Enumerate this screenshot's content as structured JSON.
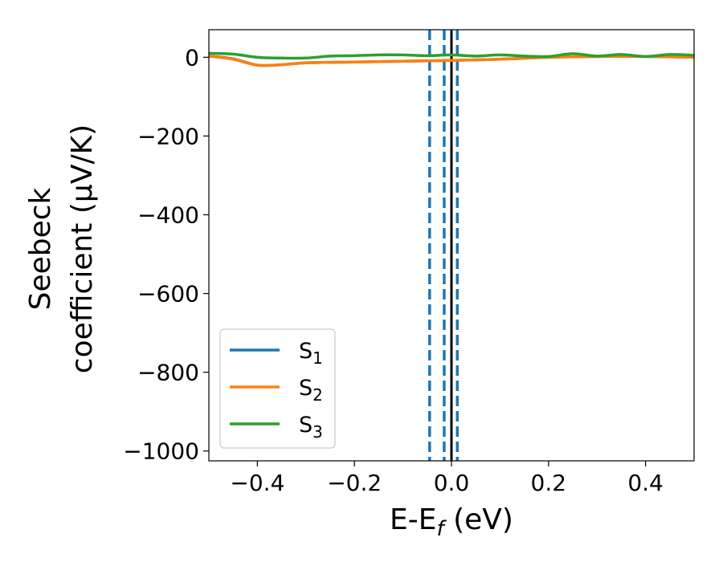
{
  "chart_data": {
    "type": "line",
    "xlabel_main": "E-E",
    "xlabel_sub": "f",
    "xlabel_unit": " (eV)",
    "ylabel_line1": "Seebeck",
    "ylabel_line2": "coefficient  (μV/K)",
    "xlim": [
      -0.5,
      0.5
    ],
    "ylim": [
      -1025,
      70
    ],
    "x_ticks": [
      -0.4,
      -0.2,
      0.0,
      0.2,
      0.4
    ],
    "x_tick_labels": [
      "−0.4",
      "−0.2",
      "0.0",
      "0.2",
      "0.4"
    ],
    "y_ticks": [
      0,
      -200,
      -400,
      -600,
      -800,
      -1000
    ],
    "y_tick_labels": [
      "0",
      "−200",
      "−400",
      "−600",
      "−800",
      "−1000"
    ],
    "grid": false,
    "legend_position": "lower-left",
    "series": [
      {
        "name": "S",
        "sub": "1",
        "color": "#1f77b4",
        "x": [
          -0.5,
          -0.45,
          -0.4,
          -0.35,
          -0.3,
          -0.2,
          -0.1,
          0.0,
          0.1,
          0.2,
          0.3,
          0.4,
          0.5
        ],
        "y": [
          3,
          -4,
          -20,
          -19,
          -14,
          -12,
          -10,
          -8,
          -5,
          0,
          2,
          2,
          0
        ]
      },
      {
        "name": "S",
        "sub": "2",
        "color": "#ff7f0e",
        "x": [
          -0.5,
          -0.45,
          -0.4,
          -0.35,
          -0.3,
          -0.2,
          -0.1,
          0.0,
          0.1,
          0.2,
          0.3,
          0.4,
          0.5
        ],
        "y": [
          3,
          -5,
          -20,
          -19,
          -14,
          -12,
          -10,
          -8,
          -5,
          0,
          2,
          2,
          0
        ]
      },
      {
        "name": "S",
        "sub": "3",
        "color": "#2ca02c",
        "x": [
          -0.5,
          -0.45,
          -0.4,
          -0.35,
          -0.3,
          -0.25,
          -0.2,
          -0.15,
          -0.1,
          -0.05,
          0.0,
          0.05,
          0.1,
          0.15,
          0.2,
          0.25,
          0.3,
          0.35,
          0.4,
          0.45,
          0.5
        ],
        "y": [
          10,
          8,
          0,
          -2,
          -2,
          3,
          4,
          6,
          6,
          4,
          6,
          3,
          6,
          3,
          2,
          9,
          3,
          7,
          2,
          7,
          5
        ]
      }
    ],
    "vertical_lines": [
      {
        "x": -0.045,
        "color": "#1f77b4",
        "style": "dashed"
      },
      {
        "x": -0.015,
        "color": "#1f77b4",
        "style": "dashed"
      },
      {
        "x": 0.012,
        "color": "#1f77b4",
        "style": "dashed"
      },
      {
        "x": 0.0,
        "color": "#000000",
        "style": "solid"
      }
    ]
  }
}
